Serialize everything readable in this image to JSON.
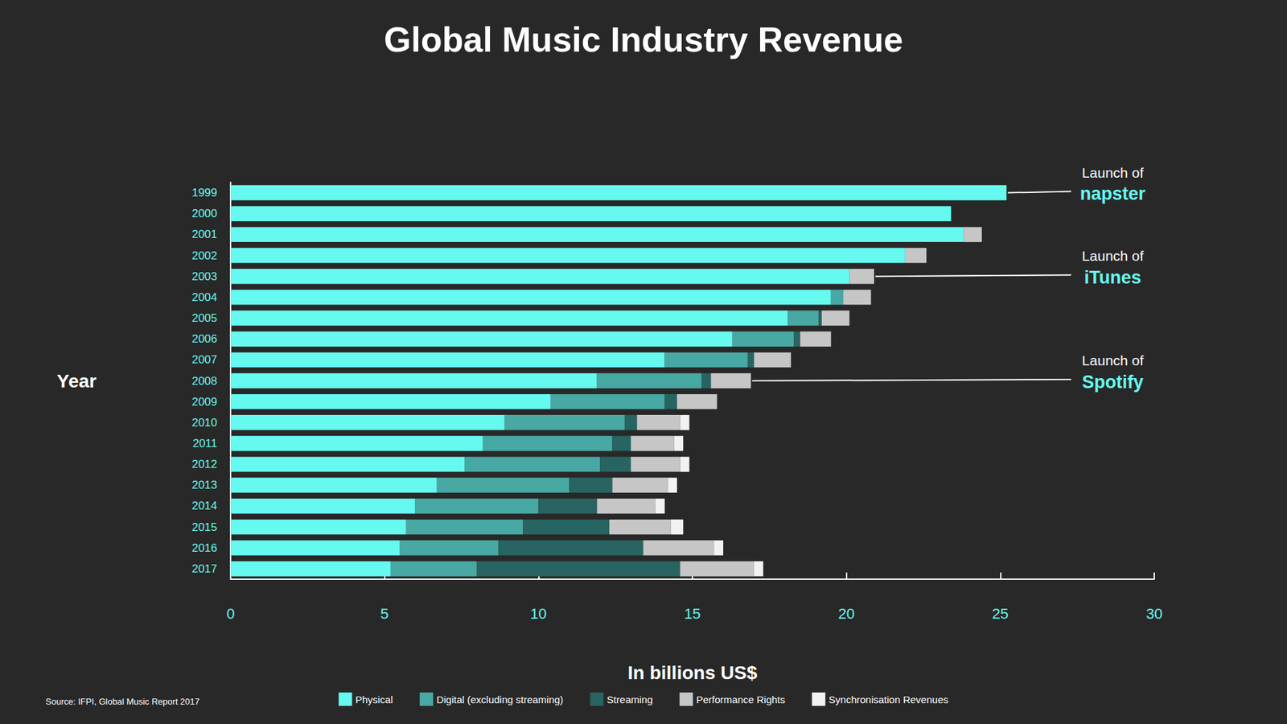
{
  "chart_data": {
    "type": "bar",
    "title": "Global Music Industry Revenue",
    "x_label": "In billions US$",
    "y_label": "Year",
    "source": "Source: IFPI, Global Music Report 2017",
    "orientation": "horizontal",
    "stacked": true,
    "grid": false,
    "legend": "bottom",
    "xlim": [
      0,
      30
    ],
    "xticks": [
      0,
      5,
      10,
      15,
      20,
      25,
      30
    ],
    "categories": [
      "1999",
      "2000",
      "2001",
      "2002",
      "2003",
      "2004",
      "2005",
      "2006",
      "2007",
      "2008",
      "2009",
      "2010",
      "2011",
      "2012",
      "2013",
      "2014",
      "2015",
      "2016",
      "2017"
    ],
    "series": [
      {
        "name": "Physical",
        "color": "#66f9f0",
        "values": [
          25.2,
          23.4,
          23.8,
          21.9,
          20.1,
          19.5,
          18.1,
          16.3,
          14.1,
          11.9,
          10.4,
          8.9,
          8.2,
          7.6,
          6.7,
          6.0,
          5.7,
          5.5,
          5.2
        ]
      },
      {
        "name": "Digital (excluding streaming)",
        "color": "#48a8a3",
        "values": [
          0,
          0,
          0,
          0,
          0,
          0.4,
          1.0,
          2.0,
          2.7,
          3.4,
          3.7,
          3.9,
          4.2,
          4.4,
          4.3,
          4.0,
          3.8,
          3.2,
          2.8
        ]
      },
      {
        "name": "Streaming",
        "color": "#276462",
        "values": [
          0,
          0,
          0,
          0,
          0,
          0,
          0.1,
          0.2,
          0.2,
          0.3,
          0.4,
          0.4,
          0.6,
          1.0,
          1.4,
          1.9,
          2.8,
          4.7,
          6.6
        ]
      },
      {
        "name": "Performance Rights",
        "color": "#c6c6c6",
        "values": [
          0,
          0,
          0.6,
          0.7,
          0.8,
          0.9,
          0.9,
          1.0,
          1.2,
          1.3,
          1.3,
          1.4,
          1.4,
          1.6,
          1.8,
          1.9,
          2.0,
          2.3,
          2.4
        ]
      },
      {
        "name": "Synchronisation Revenues",
        "color": "#f2f2f2",
        "values": [
          0,
          0,
          0,
          0,
          0,
          0,
          0,
          0,
          0,
          0,
          0,
          0.3,
          0.3,
          0.3,
          0.3,
          0.3,
          0.4,
          0.3,
          0.3
        ]
      }
    ],
    "annotations": [
      {
        "text": "Launch of",
        "label": "napster",
        "category": "1999"
      },
      {
        "text": "Launch of",
        "label": "iTunes",
        "category": "2003"
      },
      {
        "text": "Launch of",
        "label": "Spotify",
        "category": "2008"
      }
    ]
  }
}
